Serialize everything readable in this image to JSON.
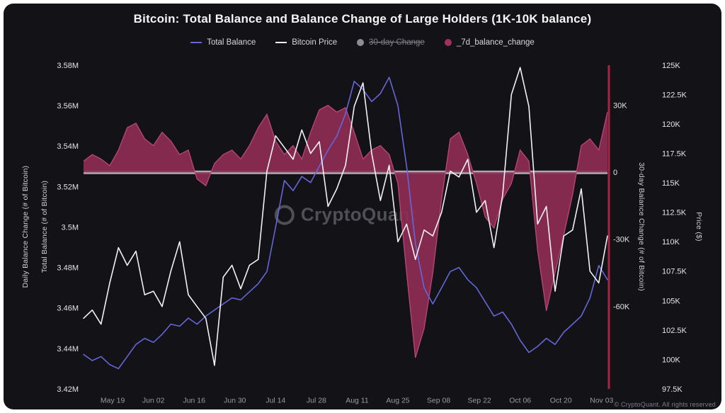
{
  "title": "Bitcoin: Total Balance and Balance Change of Large Holders (1K-10K balance)",
  "legend": [
    {
      "label": "Total Balance",
      "swatch": "line",
      "color": "#6467d8",
      "disabled": false
    },
    {
      "label": "Bitcoin Price",
      "swatch": "line",
      "color": "#f2f2f3",
      "disabled": false
    },
    {
      "label": "30-day Change",
      "swatch": "circle",
      "color": "#8d8d95",
      "disabled": true
    },
    {
      "label": "_7d_balance_change",
      "swatch": "circle",
      "color": "#9e3161",
      "disabled": false
    }
  ],
  "axes_titles": {
    "left_outer": "Daily Balance Change (# of Bitcoin)",
    "left_inner": "Total Balance (# of Bitcoin)",
    "right_inner": "30-day Balance Change (# of Bitcoin)",
    "right_outer": "Price ($)"
  },
  "watermark": "CryptoQuant",
  "footer": "© CryptoQuant. All rights reserved",
  "chart_data": {
    "type": "mixed-line-area",
    "title": "Bitcoin: Total Balance and Balance Change of Large Holders (1K-10K balance)",
    "x_ticks": [
      "May 19",
      "Jun 02",
      "Jun 16",
      "Jun 30",
      "Jul 14",
      "Jul 28",
      "Aug 11",
      "Aug 25",
      "Sep 08",
      "Sep 22",
      "Oct 06",
      "Oct 20",
      "Nov 03"
    ],
    "colors": {
      "zero_line": "#d0d0d5",
      "marker_line": "#a92441",
      "background": "#121217"
    },
    "axes": {
      "balance": {
        "min": 3420000,
        "max": 3580000,
        "ticks": [
          {
            "v": 3580000,
            "label": "3.58M"
          },
          {
            "v": 3560000,
            "label": "3.56M"
          },
          {
            "v": 3540000,
            "label": "3.54M"
          },
          {
            "v": 3520000,
            "label": "3.52M"
          },
          {
            "v": 3500000,
            "label": "3.5M"
          },
          {
            "v": 3480000,
            "label": "3.48M"
          },
          {
            "v": 3460000,
            "label": "3.46M"
          },
          {
            "v": 3440000,
            "label": "3.44M"
          },
          {
            "v": 3420000,
            "label": "3.42M"
          }
        ]
      },
      "change": {
        "min": -97000,
        "max": 48000,
        "ticks": [
          {
            "v": 30000,
            "label": "30K"
          },
          {
            "v": 0,
            "label": "0"
          },
          {
            "v": -30000,
            "label": "-30K"
          },
          {
            "v": -60000,
            "label": "-60K"
          }
        ]
      },
      "price": {
        "min": 97500,
        "max": 125000,
        "ticks": [
          {
            "v": 125000,
            "label": "125K"
          },
          {
            "v": 122500,
            "label": "122.5K"
          },
          {
            "v": 120000,
            "label": "120K"
          },
          {
            "v": 117500,
            "label": "117.5K"
          },
          {
            "v": 115000,
            "label": "115K"
          },
          {
            "v": 112500,
            "label": "112.5K"
          },
          {
            "v": 110000,
            "label": "110K"
          },
          {
            "v": 107500,
            "label": "107.5K"
          },
          {
            "v": 105000,
            "label": "105K"
          },
          {
            "v": 102500,
            "label": "102.5K"
          },
          {
            "v": 100000,
            "label": "100K"
          },
          {
            "v": 97500,
            "label": "97.5K"
          }
        ]
      }
    },
    "series": [
      {
        "name": "_7d_balance_change",
        "type": "area",
        "axis": "change",
        "color": "#8e2c55",
        "edge": "#b8477b",
        "values": [
          5000,
          8000,
          6000,
          3000,
          10000,
          20000,
          22000,
          15000,
          12000,
          18000,
          14000,
          8000,
          10000,
          -3000,
          -6000,
          4000,
          8000,
          10000,
          6000,
          12000,
          20000,
          26000,
          14000,
          8000,
          12000,
          6000,
          18000,
          28000,
          30000,
          27000,
          29000,
          18000,
          6000,
          10000,
          12000,
          8000,
          -5000,
          -45000,
          -83000,
          -70000,
          -45000,
          -12000,
          15000,
          18000,
          8000,
          -5000,
          -20000,
          -25000,
          -12000,
          -5000,
          10000,
          5000,
          -35000,
          -62000,
          -45000,
          -28000,
          -10000,
          12000,
          15000,
          10000,
          27000
        ]
      },
      {
        "name": "Total Balance",
        "type": "line",
        "axis": "balance",
        "color": "#6467d8",
        "values": [
          3437000,
          3434000,
          3436000,
          3432000,
          3430000,
          3436000,
          3442000,
          3445000,
          3443000,
          3447000,
          3452000,
          3451000,
          3455000,
          3452000,
          3456000,
          3459000,
          3462000,
          3465000,
          3464000,
          3468000,
          3472000,
          3478000,
          3500000,
          3523000,
          3518000,
          3525000,
          3522000,
          3530000,
          3538000,
          3545000,
          3556000,
          3572000,
          3568000,
          3562000,
          3566000,
          3574000,
          3560000,
          3530000,
          3492000,
          3470000,
          3462000,
          3470000,
          3478000,
          3480000,
          3474000,
          3470000,
          3463000,
          3456000,
          3458000,
          3452000,
          3444000,
          3438000,
          3441000,
          3445000,
          3442000,
          3448000,
          3452000,
          3456000,
          3465000,
          3481000,
          3474000
        ]
      },
      {
        "name": "Bitcoin Price",
        "type": "line",
        "axis": "price",
        "color": "#f2f2f3",
        "values": [
          103500,
          104200,
          103000,
          106500,
          109500,
          108000,
          109200,
          105500,
          105800,
          104500,
          107500,
          110000,
          105500,
          104500,
          103500,
          99500,
          107000,
          108000,
          106000,
          108000,
          108500,
          116000,
          119000,
          118000,
          117000,
          119500,
          117500,
          118500,
          113000,
          114500,
          116500,
          121500,
          123500,
          117500,
          113500,
          116500,
          110000,
          111500,
          108500,
          111000,
          110500,
          112500,
          116000,
          115500,
          117000,
          112500,
          113500,
          109500,
          114000,
          122500,
          124800,
          121500,
          111500,
          113000,
          105800,
          110500,
          111000,
          114500,
          107500,
          106500,
          110500
        ]
      }
    ]
  }
}
